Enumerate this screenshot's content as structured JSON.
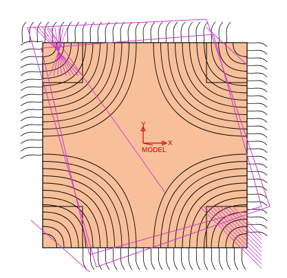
{
  "viewport": {
    "background": "#ffffff",
    "part_fill": "#f8c09a",
    "part_edge": "#000000",
    "toolpath_color": "#000000",
    "bounding_color": "#cc33cc",
    "csys_color": "#cc0000"
  },
  "csys": {
    "label": "MODEL",
    "x_axis": "X",
    "y_axis": "Y"
  },
  "icons": {
    "csys": "coordinate-system-icon"
  }
}
